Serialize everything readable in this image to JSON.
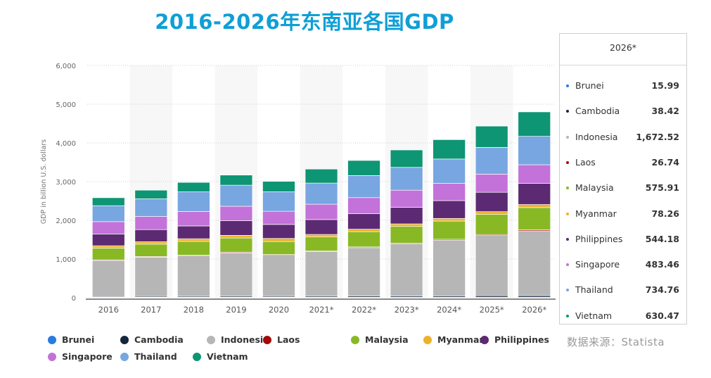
{
  "page": {
    "title": "2016-2026年东南亚各国GDP",
    "source": "数据来源：Statista"
  },
  "tooltip": {
    "header": "2026*",
    "rows": [
      {
        "name": "Brunei",
        "value": "15.99"
      },
      {
        "name": "Cambodia",
        "value": "38.42"
      },
      {
        "name": "Indonesia",
        "value": "1,672.52"
      },
      {
        "name": "Laos",
        "value": "26.74"
      },
      {
        "name": "Malaysia",
        "value": "575.91"
      },
      {
        "name": "Myanmar",
        "value": "78.26"
      },
      {
        "name": "Philippines",
        "value": "544.18"
      },
      {
        "name": "Singapore",
        "value": "483.46"
      },
      {
        "name": "Thailand",
        "value": "734.76"
      },
      {
        "name": "Vietnam",
        "value": "630.47"
      }
    ]
  },
  "chart_data": {
    "type": "bar",
    "stacked": true,
    "title": "2016-2026年东南亚各国GDP",
    "xlabel": "",
    "ylabel": "GDP in billion U.S. dollars",
    "ylim": [
      0,
      6000
    ],
    "yticks": [
      0,
      1000,
      2000,
      3000,
      4000,
      5000,
      6000
    ],
    "ytick_labels": [
      "0",
      "1,000",
      "2,000",
      "3,000",
      "4,000",
      "5,000",
      "6,000"
    ],
    "grid": true,
    "legend_position": "bottom",
    "categories": [
      "2016",
      "2017",
      "2018",
      "2019",
      "2020",
      "2021*",
      "2022*",
      "2023*",
      "2024*",
      "2025*",
      "2026*"
    ],
    "series": [
      {
        "name": "Brunei",
        "color": "#2a7ae2",
        "values": [
          11,
          12,
          14,
          13,
          12,
          14,
          14,
          15,
          15,
          16,
          15.99
        ]
      },
      {
        "name": "Cambodia",
        "color": "#13273f",
        "values": [
          20,
          22,
          25,
          27,
          25,
          27,
          29,
          31,
          33,
          36,
          38.42
        ]
      },
      {
        "name": "Indonesia",
        "color": "#b6b6b6",
        "values": [
          932,
          1015,
          1042,
          1119,
          1060,
          1150,
          1250,
          1345,
          1440,
          1555,
          1672.52
        ]
      },
      {
        "name": "Laos",
        "color": "#a10a0a",
        "values": [
          16,
          17,
          18,
          19,
          19,
          19,
          20,
          22,
          23,
          25,
          26.74
        ]
      },
      {
        "name": "Malaysia",
        "color": "#88b925",
        "values": [
          301,
          319,
          358,
          365,
          337,
          360,
          395,
          430,
          470,
          520,
          575.91
        ]
      },
      {
        "name": "Myanmar",
        "color": "#ebb22c",
        "values": [
          63,
          61,
          67,
          69,
          79,
          65,
          63,
          65,
          68,
          72,
          78.26
        ]
      },
      {
        "name": "Philippines",
        "color": "#5c2a72",
        "values": [
          305,
          314,
          331,
          377,
          362,
          385,
          400,
          430,
          460,
          500,
          544.18
        ]
      },
      {
        "name": "Singapore",
        "color": "#c372d9",
        "values": [
          318,
          339,
          373,
          374,
          340,
          396,
          415,
          440,
          445,
          470,
          483.46
        ]
      },
      {
        "name": "Thailand",
        "color": "#77a6e1",
        "values": [
          412,
          456,
          507,
          544,
          502,
          546,
          570,
          590,
          630,
          690,
          734.76
        ]
      },
      {
        "name": "Vietnam",
        "color": "#0e9574",
        "values": [
          206,
          224,
          245,
          262,
          271,
          362,
          390,
          450,
          500,
          550,
          630.47
        ]
      }
    ]
  }
}
